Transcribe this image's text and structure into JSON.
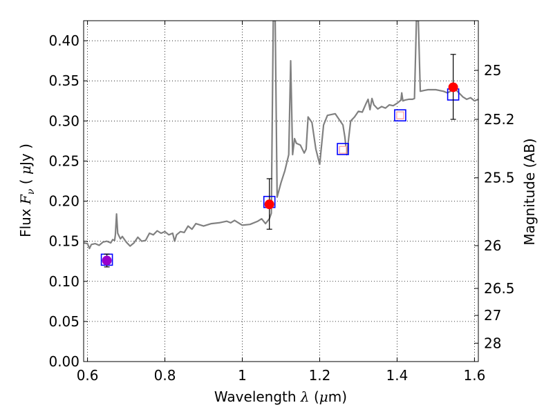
{
  "chart_data": {
    "type": "line",
    "xlabel": {
      "prefix": "Wavelength  ",
      "symbol": "λ",
      "suffix": " (",
      "unit_symbol": "μ",
      "unit_rest": "m)"
    },
    "ylabel": {
      "prefix": "Flux  ",
      "symbol": "F",
      "subscript": "ν",
      "middle": "  ( ",
      "unit_symbol": "μ",
      "unit_rest": "Jy )"
    },
    "y2label": "Magnitude (AB)",
    "xlim": [
      0.59,
      1.61
    ],
    "ylim": [
      0.0,
      0.425
    ],
    "grid": true,
    "x_ticks": [
      {
        "value": 0.6,
        "label": "0.6"
      },
      {
        "value": 0.8,
        "label": "0.8"
      },
      {
        "value": 1.0,
        "label": "1"
      },
      {
        "value": 1.2,
        "label": "1.2"
      },
      {
        "value": 1.4,
        "label": "1.4"
      },
      {
        "value": 1.6,
        "label": "1.6"
      }
    ],
    "y_ticks": [
      {
        "value": 0.0,
        "label": "0.00"
      },
      {
        "value": 0.05,
        "label": "0.05"
      },
      {
        "value": 0.1,
        "label": "0.10"
      },
      {
        "value": 0.15,
        "label": "0.15"
      },
      {
        "value": 0.2,
        "label": "0.20"
      },
      {
        "value": 0.25,
        "label": "0.25"
      },
      {
        "value": 0.3,
        "label": "0.30"
      },
      {
        "value": 0.35,
        "label": "0.35"
      },
      {
        "value": 0.4,
        "label": "0.40"
      }
    ],
    "y2_ticks": [
      {
        "value": 25,
        "label": "25"
      },
      {
        "value": 25.2,
        "label": "25.2"
      },
      {
        "value": 25.5,
        "label": "25.5"
      },
      {
        "value": 26,
        "label": "26"
      },
      {
        "value": 26.5,
        "label": "26.5"
      },
      {
        "value": 27,
        "label": "27"
      },
      {
        "value": 28,
        "label": "28"
      }
    ],
    "series": [
      {
        "kind": "model_spectrum",
        "color": "#808080",
        "points": [
          [
            0.59,
            0.148
          ],
          [
            0.6,
            0.147
          ],
          [
            0.605,
            0.141
          ],
          [
            0.61,
            0.146
          ],
          [
            0.62,
            0.147
          ],
          [
            0.63,
            0.145
          ],
          [
            0.64,
            0.149
          ],
          [
            0.65,
            0.15
          ],
          [
            0.66,
            0.148
          ],
          [
            0.665,
            0.152
          ],
          [
            0.67,
            0.151
          ],
          [
            0.672,
            0.158
          ],
          [
            0.675,
            0.184
          ],
          [
            0.678,
            0.16
          ],
          [
            0.685,
            0.153
          ],
          [
            0.69,
            0.156
          ],
          [
            0.7,
            0.149
          ],
          [
            0.71,
            0.144
          ],
          [
            0.72,
            0.148
          ],
          [
            0.73,
            0.155
          ],
          [
            0.74,
            0.15
          ],
          [
            0.75,
            0.151
          ],
          [
            0.76,
            0.16
          ],
          [
            0.77,
            0.158
          ],
          [
            0.78,
            0.163
          ],
          [
            0.79,
            0.16
          ],
          [
            0.8,
            0.162
          ],
          [
            0.81,
            0.158
          ],
          [
            0.82,
            0.16
          ],
          [
            0.825,
            0.15
          ],
          [
            0.83,
            0.158
          ],
          [
            0.84,
            0.162
          ],
          [
            0.85,
            0.161
          ],
          [
            0.86,
            0.169
          ],
          [
            0.87,
            0.165
          ],
          [
            0.88,
            0.172
          ],
          [
            0.9,
            0.169
          ],
          [
            0.92,
            0.172
          ],
          [
            0.94,
            0.173
          ],
          [
            0.96,
            0.175
          ],
          [
            0.97,
            0.173
          ],
          [
            0.98,
            0.176
          ],
          [
            1.0,
            0.17
          ],
          [
            1.02,
            0.171
          ],
          [
            1.04,
            0.175
          ],
          [
            1.05,
            0.178
          ],
          [
            1.06,
            0.172
          ],
          [
            1.07,
            0.178
          ],
          [
            1.075,
            0.185
          ],
          [
            1.08,
            0.425
          ],
          [
            1.085,
            0.425
          ],
          [
            1.09,
            0.205
          ],
          [
            1.1,
            0.223
          ],
          [
            1.11,
            0.238
          ],
          [
            1.12,
            0.258
          ],
          [
            1.125,
            0.375
          ],
          [
            1.13,
            0.258
          ],
          [
            1.135,
            0.278
          ],
          [
            1.14,
            0.272
          ],
          [
            1.15,
            0.27
          ],
          [
            1.16,
            0.26
          ],
          [
            1.165,
            0.265
          ],
          [
            1.17,
            0.305
          ],
          [
            1.18,
            0.298
          ],
          [
            1.19,
            0.265
          ],
          [
            1.2,
            0.246
          ],
          [
            1.21,
            0.295
          ],
          [
            1.22,
            0.307
          ],
          [
            1.24,
            0.309
          ],
          [
            1.25,
            0.302
          ],
          [
            1.26,
            0.295
          ],
          [
            1.265,
            0.28
          ],
          [
            1.27,
            0.258
          ],
          [
            1.28,
            0.3
          ],
          [
            1.29,
            0.305
          ],
          [
            1.3,
            0.312
          ],
          [
            1.31,
            0.311
          ],
          [
            1.32,
            0.322
          ],
          [
            1.325,
            0.327
          ],
          [
            1.33,
            0.314
          ],
          [
            1.335,
            0.328
          ],
          [
            1.34,
            0.32
          ],
          [
            1.35,
            0.315
          ],
          [
            1.36,
            0.318
          ],
          [
            1.37,
            0.316
          ],
          [
            1.38,
            0.32
          ],
          [
            1.39,
            0.319
          ],
          [
            1.4,
            0.322
          ],
          [
            1.41,
            0.326
          ],
          [
            1.412,
            0.335
          ],
          [
            1.415,
            0.325
          ],
          [
            1.42,
            0.326
          ],
          [
            1.43,
            0.327
          ],
          [
            1.44,
            0.327
          ],
          [
            1.445,
            0.328
          ],
          [
            1.45,
            0.425
          ],
          [
            1.455,
            0.425
          ],
          [
            1.46,
            0.337
          ],
          [
            1.47,
            0.338
          ],
          [
            1.48,
            0.339
          ],
          [
            1.5,
            0.339
          ],
          [
            1.52,
            0.337
          ],
          [
            1.53,
            0.335
          ],
          [
            1.55,
            0.34
          ],
          [
            1.56,
            0.335
          ],
          [
            1.57,
            0.33
          ],
          [
            1.58,
            0.327
          ],
          [
            1.59,
            0.329
          ],
          [
            1.6,
            0.325
          ],
          [
            1.61,
            0.327
          ]
        ]
      },
      {
        "kind": "model_band_flux",
        "marker": "open-square",
        "color": "#0000ff",
        "points": [
          {
            "x": 0.65,
            "y": 0.127
          },
          {
            "x": 1.07,
            "y": 0.199
          },
          {
            "x": 1.26,
            "y": 0.265
          },
          {
            "x": 1.408,
            "y": 0.307
          },
          {
            "x": 1.545,
            "y": 0.333
          }
        ]
      },
      {
        "kind": "observed_flux",
        "marker": "filled-circle",
        "color": "#ff0000",
        "points": [
          {
            "x": 0.65,
            "y": 0.126,
            "err_lo": 0.118,
            "err_hi": 0.134,
            "color": "#9900cc"
          },
          {
            "x": 1.07,
            "y": 0.196,
            "err_lo": 0.165,
            "err_hi": 0.228,
            "color": "#ff0000"
          },
          {
            "x": 1.26,
            "y": 0.264,
            "err_lo": null,
            "err_hi": null,
            "color": "#ff9999",
            "marker": "small-square"
          },
          {
            "x": 1.408,
            "y": 0.307,
            "err_lo": null,
            "err_hi": null,
            "color": "#ff9999",
            "marker": "small-square"
          },
          {
            "x": 1.545,
            "y": 0.342,
            "err_lo": 0.302,
            "err_hi": 0.383,
            "color": "#ff0000"
          }
        ]
      }
    ]
  }
}
